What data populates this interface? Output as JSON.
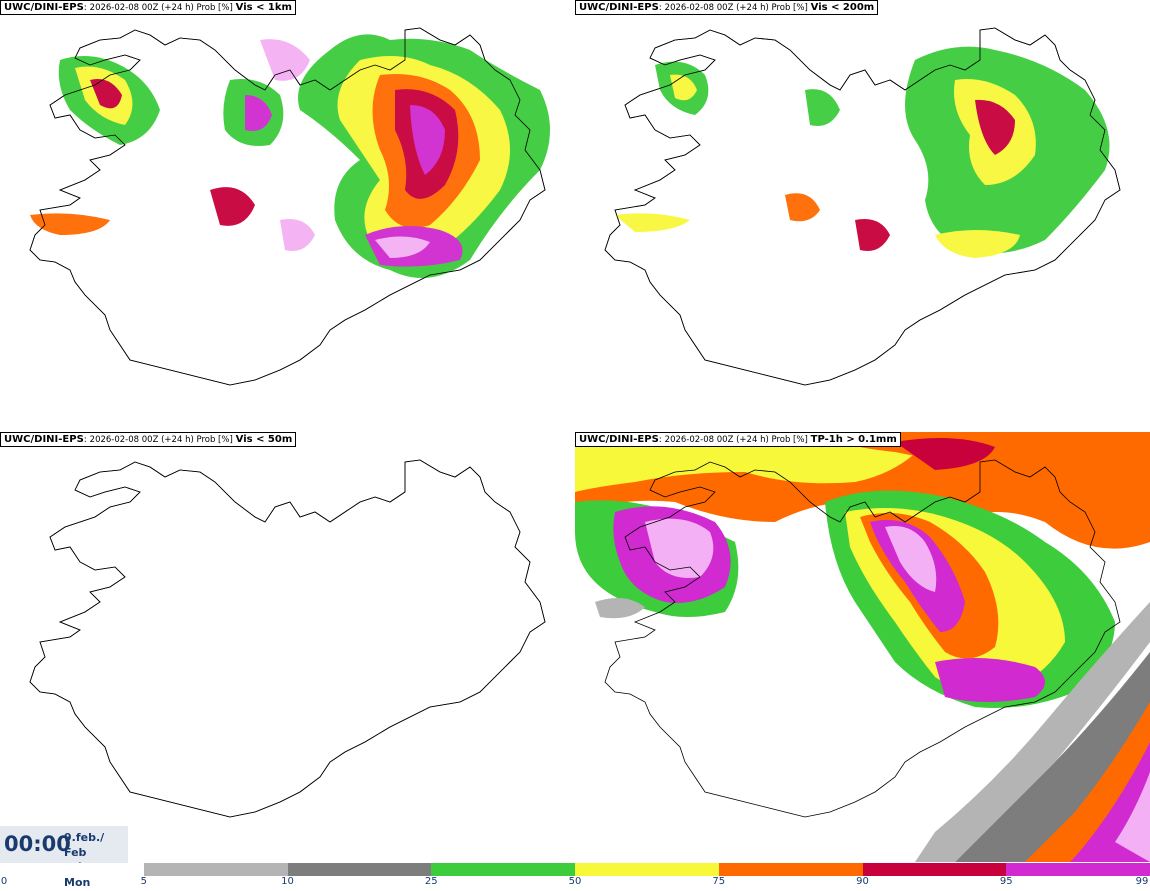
{
  "panels": [
    {
      "source": "UWC/DINI-EPS",
      "meta": "2026-02-08 00Z (+24 h) Prob [%]",
      "variable": "Vis < 1km"
    },
    {
      "source": "UWC/DINI-EPS",
      "meta": "2026-02-08 00Z (+24 h) Prob [%]",
      "variable": "Vis < 200m"
    },
    {
      "source": "UWC/DINI-EPS",
      "meta": "2026-02-08 00Z (+24 h) Prob [%]",
      "variable": "Vis < 50m"
    },
    {
      "source": "UWC/DINI-EPS",
      "meta": "2026-02-08 00Z (+24 h) Prob [%]",
      "variable": "TP-1h > 0.1mm"
    }
  ],
  "valid_time": {
    "time": "00:00",
    "date_line1": "9.feb./ Feb",
    "date_line2": "Mán./ Mon"
  },
  "colorbar": {
    "ticks": [
      "0",
      "5",
      "10",
      "25",
      "50",
      "75",
      "90",
      "95",
      "99"
    ],
    "colors": [
      "#ffffff",
      "#b4b4b4",
      "#7d7d7d",
      "#3ccc3c",
      "#f8f83a",
      "#ff6a00",
      "#c8003c",
      "#d02ad0",
      "#f4b0f4"
    ]
  }
}
